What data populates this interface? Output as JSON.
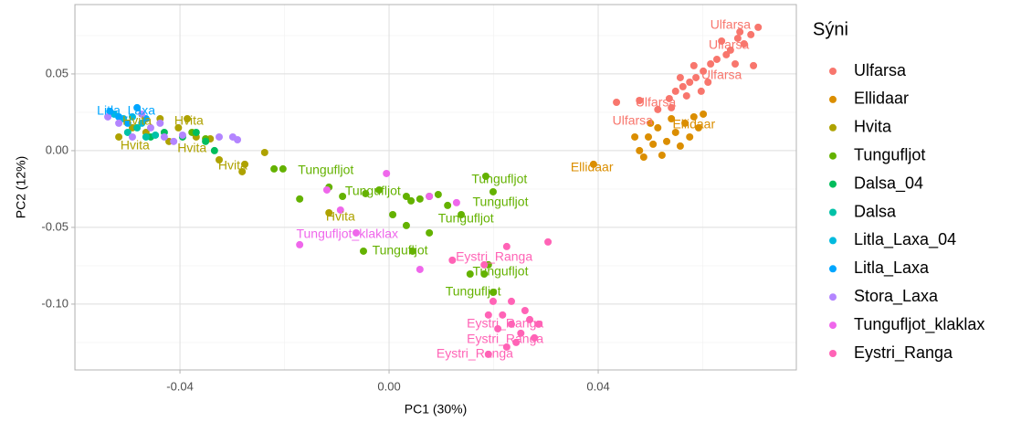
{
  "chart_data": {
    "type": "scatter",
    "x_label": "PC1 (30%)",
    "y_label": "PC2 (12%)",
    "legend_title": "Sýni",
    "legend_position": "right",
    "grid": true,
    "xlim": [
      -0.0601,
      0.0779
    ],
    "ylim": [
      -0.1429,
      0.0952
    ],
    "xticks": [
      -0.04,
      {
        "value": 0,
        "label": "0.00"
      },
      0.04
    ],
    "yticks": [
      {
        "value": -0.1,
        "label": "-0.10"
      },
      -0.05,
      {
        "value": 0,
        "label": "0.00"
      },
      0.05
    ],
    "series": [
      {
        "name": "Ulfarsa",
        "color": "#F8766D",
        "x": [
          0.0706,
          0.0692,
          0.0679,
          0.0667,
          0.0653,
          0.0645,
          0.0627,
          0.0615,
          0.0601,
          0.0587,
          0.0575,
          0.0562,
          0.0548,
          0.0536,
          0.0583,
          0.0636,
          0.0662,
          0.0697,
          0.061,
          0.0557,
          0.0479,
          0.0435,
          0.0514,
          0.054,
          0.0671,
          0.0597,
          0.0569
        ],
        "values": [
          0.0804,
          0.0756,
          0.0696,
          0.0732,
          0.0655,
          0.0625,
          0.0595,
          0.0565,
          0.0518,
          0.0476,
          0.0446,
          0.0417,
          0.0387,
          0.0339,
          0.0554,
          0.0714,
          0.0565,
          0.0554,
          0.0446,
          0.0476,
          0.0327,
          0.0315,
          0.0268,
          0.028,
          0.0774,
          0.0387,
          0.0357
        ]
      },
      {
        "name": "Ellidaar",
        "color": "#DB8E00",
        "x": [
          0.0391,
          0.0479,
          0.0496,
          0.0514,
          0.0531,
          0.0548,
          0.0566,
          0.0583,
          0.0592,
          0.0557,
          0.0522,
          0.0487,
          0.0505,
          0.054,
          0.0575,
          0.047,
          0.0601,
          0.05
        ],
        "values": [
          -0.0089,
          0,
          0.0089,
          0.0149,
          0.006,
          0.0119,
          0.0179,
          0.022,
          0.0149,
          0.003,
          -0.003,
          -0.0042,
          0.0042,
          0.0208,
          0.0089,
          0.0089,
          0.0238,
          0.0179
        ]
      },
      {
        "name": "Hvita",
        "color": "#AEA200",
        "x": [
          -0.0517,
          -0.0491,
          -0.0465,
          -0.0438,
          -0.0403,
          -0.0386,
          -0.0369,
          -0.0342,
          -0.0325,
          -0.0281,
          -0.0238,
          -0.0276,
          -0.0115,
          -0.0421
        ],
        "values": [
          0.0089,
          0.0149,
          0.0119,
          0.0208,
          0.0149,
          0.0208,
          0.0089,
          0.0077,
          -0.006,
          -0.0137,
          -0.0012,
          -0.0089,
          -0.0405,
          0.006
        ]
      },
      {
        "name": "Tungufljot",
        "color": "#64B200",
        "x": [
          -0.022,
          -0.0203,
          -0.0171,
          -0.0115,
          -0.0089,
          -0.0045,
          -0.0019,
          0.0007,
          0.0033,
          0.0042,
          0.0059,
          0.0077,
          0.0094,
          0.0112,
          0.0138,
          0.0185,
          0.0199,
          0.0033,
          0.0045,
          -0.0049,
          0.0077,
          0.0182,
          0.019,
          0.0199,
          0.0155,
          -0.0377,
          -0.0351
        ],
        "values": [
          -0.0119,
          -0.0119,
          -0.0315,
          -0.0238,
          -0.0298,
          -0.028,
          -0.0256,
          -0.0417,
          -0.0298,
          -0.0327,
          -0.0315,
          -0.0298,
          -0.0286,
          -0.0357,
          -0.0417,
          -0.0167,
          -0.0268,
          -0.0488,
          -0.0655,
          -0.0655,
          -0.0536,
          -0.0804,
          -0.0744,
          -0.0923,
          -0.0804,
          0.0119,
          0.0077
        ]
      },
      {
        "name": "Dalsa_04",
        "color": "#00BD5C",
        "x": [
          -0.0456,
          -0.043,
          -0.0395,
          -0.0369,
          -0.0351,
          -0.0334
        ],
        "values": [
          0.0089,
          0.0119,
          0.0089,
          0.0119,
          0.006,
          0.0
        ]
      },
      {
        "name": "Dalsa",
        "color": "#00C1A7",
        "x": [
          -0.05,
          -0.0482,
          -0.0465,
          -0.0447
        ],
        "values": [
          0.0119,
          0.0149,
          0.0089,
          0.0101
        ]
      },
      {
        "name": "Litla_Laxa_04",
        "color": "#00BADE",
        "x": [
          -0.0526,
          -0.0508,
          -0.0491,
          -0.0473
        ],
        "values": [
          0.0238,
          0.0208,
          0.022,
          0.0179
        ]
      },
      {
        "name": "Litla_Laxa",
        "color": "#00A6FF",
        "x": [
          -0.0534,
          -0.0517,
          -0.0482,
          -0.05,
          -0.0465
        ],
        "values": [
          0.0256,
          0.022,
          0.028,
          0.0179,
          0.0208
        ]
      },
      {
        "name": "Stora_Laxa",
        "color": "#B385FF",
        "x": [
          -0.0538,
          -0.0517,
          -0.0491,
          -0.0456,
          -0.043,
          -0.0412,
          -0.0395,
          -0.0325,
          -0.0299,
          -0.029,
          -0.0438,
          -0.0473
        ],
        "values": [
          0.022,
          0.0179,
          0.0089,
          0.0149,
          0.0089,
          0.006,
          0.0101,
          0.0089,
          0.0089,
          0.0071,
          0.0179,
          0.0238
        ]
      },
      {
        "name": "Tungufljot_klaklax",
        "color": "#EF67EB",
        "x": [
          -0.0171,
          -0.0119,
          -0.0093,
          -0.0005,
          0.0059,
          0.0077,
          0.0129,
          -0.0063
        ],
        "values": [
          -0.0613,
          -0.0256,
          -0.0387,
          -0.0149,
          -0.0774,
          -0.0298,
          -0.0339,
          -0.0536
        ]
      },
      {
        "name": "Eystri_Ranga",
        "color": "#FF63B6",
        "x": [
          0.0121,
          0.0182,
          0.0304,
          0.0225,
          0.0199,
          0.0217,
          0.0234,
          0.0252,
          0.0269,
          0.0208,
          0.0243,
          0.026,
          0.0278,
          0.0225,
          0.019,
          0.0286,
          0.0234,
          0.019
        ],
        "values": [
          -0.0714,
          -0.0744,
          -0.0595,
          -0.0625,
          -0.0982,
          -0.1071,
          -0.1131,
          -0.119,
          -0.1101,
          -0.1161,
          -0.125,
          -0.1042,
          -0.122,
          -0.128,
          -0.1071,
          -0.1131,
          -0.0982,
          -0.1327
        ]
      }
    ],
    "annotations": [
      {
        "text": "Ulfarsa",
        "x": 0.0653,
        "y": 0.0815,
        "color": "#F8766D"
      },
      {
        "text": "Ulfarsa",
        "x": 0.065,
        "y": 0.0685,
        "color": "#F8766D"
      },
      {
        "text": "Ulfarsa",
        "x": 0.0636,
        "y": 0.0488,
        "color": "#F8766D"
      },
      {
        "text": "Ulfarsa",
        "x": 0.051,
        "y": 0.031,
        "color": "#F8766D"
      },
      {
        "text": "Ulfarsa",
        "x": 0.0466,
        "y": 0.019,
        "color": "#F8766D"
      },
      {
        "text": "Ellidaar",
        "x": 0.0583,
        "y": 0.0167,
        "color": "#DB8E00"
      },
      {
        "text": "Ellidaar",
        "x": 0.0388,
        "y": -0.0113,
        "color": "#DB8E00"
      },
      {
        "text": "Litla_Laxa",
        "x": -0.0503,
        "y": 0.0256,
        "color": "#00A6FF"
      },
      {
        "text": "Hvita",
        "x": -0.0482,
        "y": 0.019,
        "color": "#AEA200"
      },
      {
        "text": "Hvita",
        "x": -0.0383,
        "y": 0.019,
        "color": "#AEA200"
      },
      {
        "text": "Hvita",
        "x": -0.0486,
        "y": 0.003,
        "color": "#AEA200"
      },
      {
        "text": "Hvita",
        "x": -0.0377,
        "y": 0.0012,
        "color": "#AEA200"
      },
      {
        "text": "Hvita",
        "x": -0.0299,
        "y": -0.0101,
        "color": "#AEA200"
      },
      {
        "text": "Hvita",
        "x": -0.0093,
        "y": -0.0435,
        "color": "#AEA200"
      },
      {
        "text": "Tungufljot",
        "x": -0.0121,
        "y": -0.0131,
        "color": "#64B200"
      },
      {
        "text": "Tungufljot",
        "x": -0.0031,
        "y": -0.0268,
        "color": "#64B200"
      },
      {
        "text": "Tungufljot",
        "x": 0.0211,
        "y": -0.019,
        "color": "#64B200"
      },
      {
        "text": "Tungufljot",
        "x": 0.0213,
        "y": -0.0339,
        "color": "#64B200"
      },
      {
        "text": "Tungufljot",
        "x": 0.0147,
        "y": -0.0446,
        "color": "#64B200"
      },
      {
        "text": "Tungufljot",
        "x": 0.0021,
        "y": -0.0655,
        "color": "#64B200"
      },
      {
        "text": "Tungufljot",
        "x": 0.0213,
        "y": -0.0792,
        "color": "#64B200"
      },
      {
        "text": "Tungufljot",
        "x": 0.0161,
        "y": -0.0923,
        "color": "#64B200"
      },
      {
        "text": "Tungufljot_klaklax",
        "x": -0.008,
        "y": -0.0548,
        "color": "#EF67EB"
      },
      {
        "text": "Eystri_Ranga",
        "x": 0.0201,
        "y": -0.0696,
        "color": "#FF63B6"
      },
      {
        "text": "Eystri_Ranga",
        "x": 0.0222,
        "y": -0.1131,
        "color": "#FF63B6"
      },
      {
        "text": "Eystri_Ranga",
        "x": 0.0222,
        "y": -0.1232,
        "color": "#FF63B6"
      },
      {
        "text": "Eystri_Ranga",
        "x": 0.0164,
        "y": -0.1327,
        "color": "#FF63B6"
      }
    ]
  }
}
